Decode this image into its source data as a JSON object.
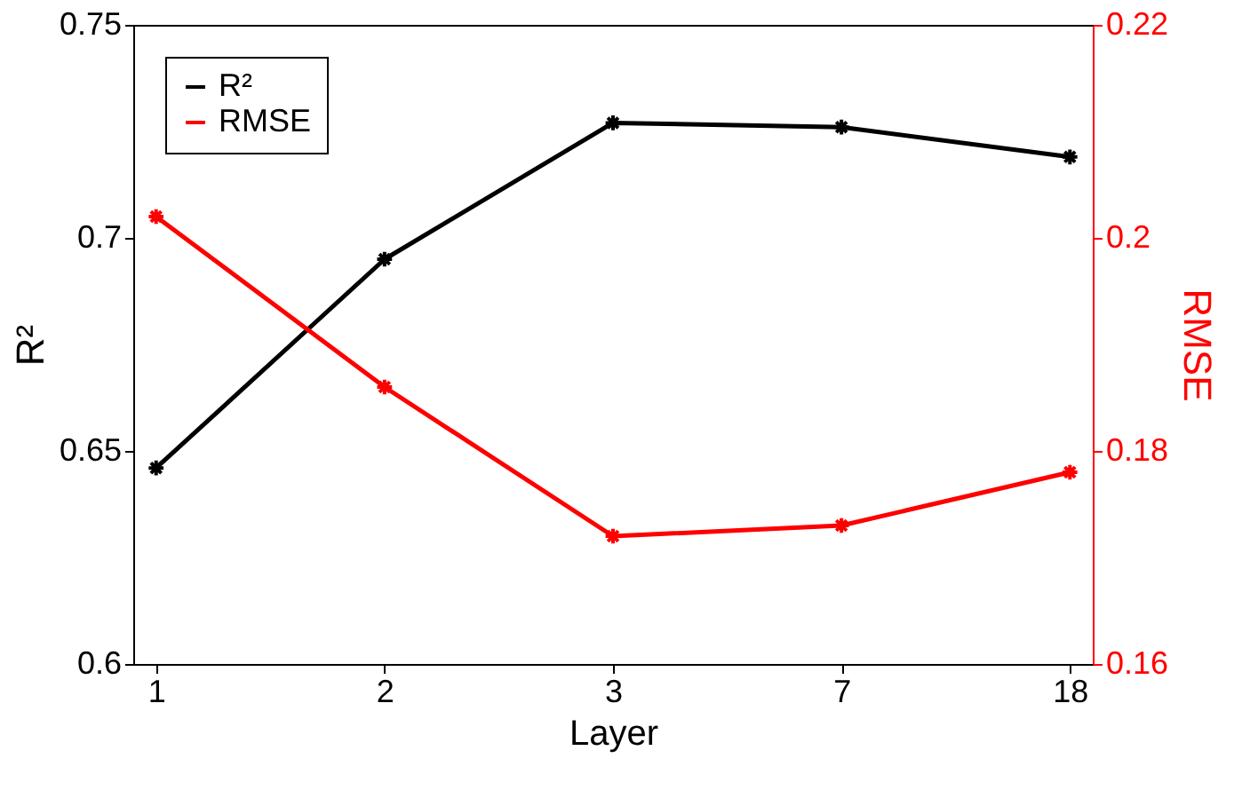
{
  "chart_data": {
    "type": "line",
    "xlabel": "Layer",
    "ylabel": "R²",
    "y2label": "RMSE",
    "categories": [
      "1",
      "2",
      "3",
      "7",
      "18"
    ],
    "series": [
      {
        "name": "R²",
        "color": "#000000",
        "values": [
          0.646,
          0.695,
          0.727,
          0.726,
          0.719
        ]
      },
      {
        "name": "RMSE",
        "color": "#ff0000",
        "axis": "y2",
        "values": [
          0.202,
          0.186,
          0.172,
          0.173,
          0.178
        ]
      }
    ],
    "ylim": [
      0.6,
      0.75
    ],
    "yticks": [
      0.6,
      0.65,
      0.7,
      0.75
    ],
    "y2lim": [
      0.16,
      0.22
    ],
    "y2ticks": [
      0.16,
      0.18,
      0.2,
      0.22
    ],
    "marker": "cross",
    "line_style": "solid",
    "grid": false,
    "legend": "top left"
  }
}
